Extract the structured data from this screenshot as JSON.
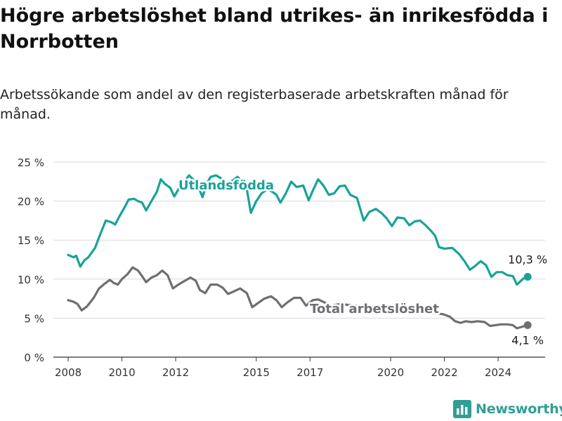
{
  "title": "Högre arbetslöshet bland utrikes- än inrikesfödda i Norrbotten",
  "subtitle": "Arbetssökande som andel av den registerbaserade arbetskraften månad för månad.",
  "brand": {
    "name": "Newsworthy",
    "icon": "bar-chart-logo-icon"
  },
  "colors": {
    "foreign_born": "#17a398",
    "total": "#6e6e73",
    "axis": "#333333",
    "grid": "#d9d9d9"
  },
  "chart_data": {
    "type": "line",
    "ylim": [
      0,
      25
    ],
    "grid": "horizontal",
    "y_ticks": [
      {
        "value": 0,
        "label": "0 %"
      },
      {
        "value": 5,
        "label": "5 %"
      },
      {
        "value": 10,
        "label": "10 %"
      },
      {
        "value": 15,
        "label": "15 %"
      },
      {
        "value": 20,
        "label": "20 %"
      },
      {
        "value": 25,
        "label": "25 %"
      }
    ],
    "x_ticks": [
      "2008",
      "2010",
      "2012",
      "2015",
      "2017",
      "2020",
      "2022",
      "2024"
    ],
    "series": [
      {
        "name": "Utlandsfödda",
        "color": "#17a398",
        "end_label": "10,3 %",
        "points": [
          [
            2008.0,
            13.1
          ],
          [
            2008.2,
            12.8
          ],
          [
            2008.3,
            13.0
          ],
          [
            2008.45,
            11.6
          ],
          [
            2008.6,
            12.4
          ],
          [
            2008.75,
            12.8
          ],
          [
            2009.0,
            14.0
          ],
          [
            2009.2,
            15.8
          ],
          [
            2009.4,
            17.5
          ],
          [
            2009.6,
            17.3
          ],
          [
            2009.75,
            17.0
          ],
          [
            2009.9,
            18.0
          ],
          [
            2010.1,
            19.2
          ],
          [
            2010.25,
            20.2
          ],
          [
            2010.45,
            20.3
          ],
          [
            2010.6,
            20.0
          ],
          [
            2010.75,
            19.8
          ],
          [
            2010.9,
            18.8
          ],
          [
            2011.1,
            20.0
          ],
          [
            2011.3,
            21.2
          ],
          [
            2011.45,
            22.8
          ],
          [
            2011.6,
            22.2
          ],
          [
            2011.8,
            21.7
          ],
          [
            2011.95,
            20.6
          ],
          [
            2012.1,
            21.5
          ],
          [
            2012.3,
            22.4
          ],
          [
            2012.5,
            23.3
          ],
          [
            2012.7,
            22.6
          ],
          [
            2012.85,
            21.8
          ],
          [
            2013.0,
            20.5
          ],
          [
            2013.15,
            22.2
          ],
          [
            2013.3,
            23.1
          ],
          [
            2013.5,
            23.3
          ],
          [
            2013.65,
            23.0
          ],
          [
            2013.8,
            22.6
          ],
          [
            2013.95,
            21.5
          ],
          [
            2014.1,
            22.6
          ],
          [
            2014.3,
            23.1
          ],
          [
            2014.5,
            22.5
          ],
          [
            2014.65,
            21.5
          ],
          [
            2014.8,
            18.5
          ],
          [
            2015.0,
            20.0
          ],
          [
            2015.2,
            21.0
          ],
          [
            2015.4,
            21.5
          ],
          [
            2015.6,
            21.2
          ],
          [
            2015.75,
            20.8
          ],
          [
            2015.9,
            19.8
          ],
          [
            2016.1,
            21.0
          ],
          [
            2016.3,
            22.5
          ],
          [
            2016.5,
            21.8
          ],
          [
            2016.75,
            22.0
          ],
          [
            2016.95,
            20.1
          ],
          [
            2017.1,
            21.3
          ],
          [
            2017.3,
            22.8
          ],
          [
            2017.5,
            22.0
          ],
          [
            2017.7,
            20.8
          ],
          [
            2017.9,
            21.0
          ],
          [
            2018.1,
            21.9
          ],
          [
            2018.3,
            22.0
          ],
          [
            2018.5,
            20.8
          ],
          [
            2018.75,
            20.4
          ],
          [
            2019.0,
            17.5
          ],
          [
            2019.2,
            18.6
          ],
          [
            2019.45,
            19.0
          ],
          [
            2019.65,
            18.5
          ],
          [
            2019.85,
            17.8
          ],
          [
            2020.05,
            16.8
          ],
          [
            2020.25,
            17.9
          ],
          [
            2020.5,
            17.8
          ],
          [
            2020.7,
            16.9
          ],
          [
            2020.9,
            17.4
          ],
          [
            2021.1,
            17.5
          ],
          [
            2021.3,
            16.9
          ],
          [
            2021.5,
            16.2
          ],
          [
            2021.65,
            15.6
          ],
          [
            2021.8,
            14.1
          ],
          [
            2022.0,
            13.9
          ],
          [
            2022.3,
            14.0
          ],
          [
            2022.55,
            13.2
          ],
          [
            2022.75,
            12.3
          ],
          [
            2022.95,
            11.2
          ],
          [
            2023.15,
            11.7
          ],
          [
            2023.35,
            12.3
          ],
          [
            2023.55,
            11.8
          ],
          [
            2023.75,
            10.3
          ],
          [
            2023.95,
            10.9
          ],
          [
            2024.15,
            10.9
          ],
          [
            2024.35,
            10.5
          ],
          [
            2024.55,
            10.4
          ],
          [
            2024.7,
            9.3
          ],
          [
            2024.95,
            10.1
          ],
          [
            2025.1,
            10.3
          ]
        ]
      },
      {
        "name": "Total arbetslöshet",
        "color": "#6e6e73",
        "end_label": "4,1 %",
        "points": [
          [
            2008.0,
            7.3
          ],
          [
            2008.2,
            7.1
          ],
          [
            2008.35,
            6.8
          ],
          [
            2008.5,
            6.0
          ],
          [
            2008.7,
            6.5
          ],
          [
            2008.95,
            7.6
          ],
          [
            2009.15,
            8.8
          ],
          [
            2009.35,
            9.4
          ],
          [
            2009.55,
            9.9
          ],
          [
            2009.7,
            9.5
          ],
          [
            2009.85,
            9.3
          ],
          [
            2010.0,
            10.0
          ],
          [
            2010.2,
            10.6
          ],
          [
            2010.4,
            11.5
          ],
          [
            2010.6,
            11.1
          ],
          [
            2010.75,
            10.4
          ],
          [
            2010.9,
            9.6
          ],
          [
            2011.1,
            10.2
          ],
          [
            2011.3,
            10.5
          ],
          [
            2011.5,
            11.1
          ],
          [
            2011.7,
            10.5
          ],
          [
            2011.9,
            8.8
          ],
          [
            2012.1,
            9.3
          ],
          [
            2012.35,
            9.8
          ],
          [
            2012.55,
            10.2
          ],
          [
            2012.75,
            9.8
          ],
          [
            2012.9,
            8.6
          ],
          [
            2013.1,
            8.2
          ],
          [
            2013.3,
            9.3
          ],
          [
            2013.55,
            9.3
          ],
          [
            2013.75,
            8.9
          ],
          [
            2013.95,
            8.1
          ],
          [
            2014.15,
            8.4
          ],
          [
            2014.4,
            8.8
          ],
          [
            2014.65,
            8.2
          ],
          [
            2014.85,
            6.4
          ],
          [
            2015.05,
            6.9
          ],
          [
            2015.3,
            7.5
          ],
          [
            2015.55,
            7.8
          ],
          [
            2015.75,
            7.3
          ],
          [
            2015.95,
            6.4
          ],
          [
            2016.15,
            7.0
          ],
          [
            2016.4,
            7.6
          ],
          [
            2016.65,
            7.6
          ],
          [
            2016.85,
            6.6
          ],
          [
            2017.1,
            7.3
          ],
          [
            2017.3,
            7.4
          ],
          [
            2017.55,
            7.0
          ],
          [
            2017.8,
            6.6
          ],
          [
            2018.1,
            6.8
          ],
          [
            2018.4,
            6.7
          ],
          [
            2018.7,
            6.6
          ],
          [
            2019.0,
            6.3
          ],
          [
            2019.3,
            6.5
          ],
          [
            2019.6,
            6.4
          ],
          [
            2019.9,
            6.3
          ],
          [
            2020.2,
            6.2
          ],
          [
            2020.5,
            6.2
          ],
          [
            2020.8,
            6.1
          ],
          [
            2021.1,
            6.0
          ],
          [
            2021.4,
            5.8
          ],
          [
            2021.7,
            5.6
          ],
          [
            2021.95,
            5.5
          ],
          [
            2022.2,
            5.2
          ],
          [
            2022.4,
            4.6
          ],
          [
            2022.6,
            4.4
          ],
          [
            2022.8,
            4.6
          ],
          [
            2023.0,
            4.5
          ],
          [
            2023.25,
            4.6
          ],
          [
            2023.5,
            4.5
          ],
          [
            2023.7,
            4.0
          ],
          [
            2023.9,
            4.1
          ],
          [
            2024.1,
            4.2
          ],
          [
            2024.35,
            4.2
          ],
          [
            2024.55,
            4.1
          ],
          [
            2024.7,
            3.7
          ],
          [
            2024.9,
            3.9
          ],
          [
            2025.1,
            4.1
          ]
        ]
      }
    ]
  }
}
